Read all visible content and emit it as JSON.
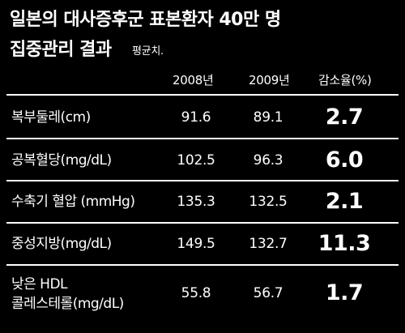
{
  "header": {
    "title_line1": "일본의 대사증후군 표본환자 40만 명",
    "title_line2": "집중관리 결과",
    "note": "평균치."
  },
  "table": {
    "columns": [
      "2008년",
      "2009년",
      "감소율(%)"
    ],
    "rows": [
      {
        "label": "복부둘레(cm)",
        "y2008": "91.6",
        "y2009": "89.1",
        "decrease": "2.7"
      },
      {
        "label": "공복혈당(mg/dL)",
        "y2008": "102.5",
        "y2009": "96.3",
        "decrease": "6.0"
      },
      {
        "label": "수축기 혈압 (mmHg)",
        "y2008": "135.3",
        "y2009": "132.5",
        "decrease": "2.1"
      },
      {
        "label": "중성지방(mg/dL)",
        "y2008": "149.5",
        "y2009": "132.7",
        "decrease": "11.3"
      },
      {
        "label_line1": "낮은 HDL",
        "label_line2": "콜레스테롤(mg/dL)",
        "y2008": "55.8",
        "y2009": "56.7",
        "decrease": "1.7"
      }
    ]
  }
}
